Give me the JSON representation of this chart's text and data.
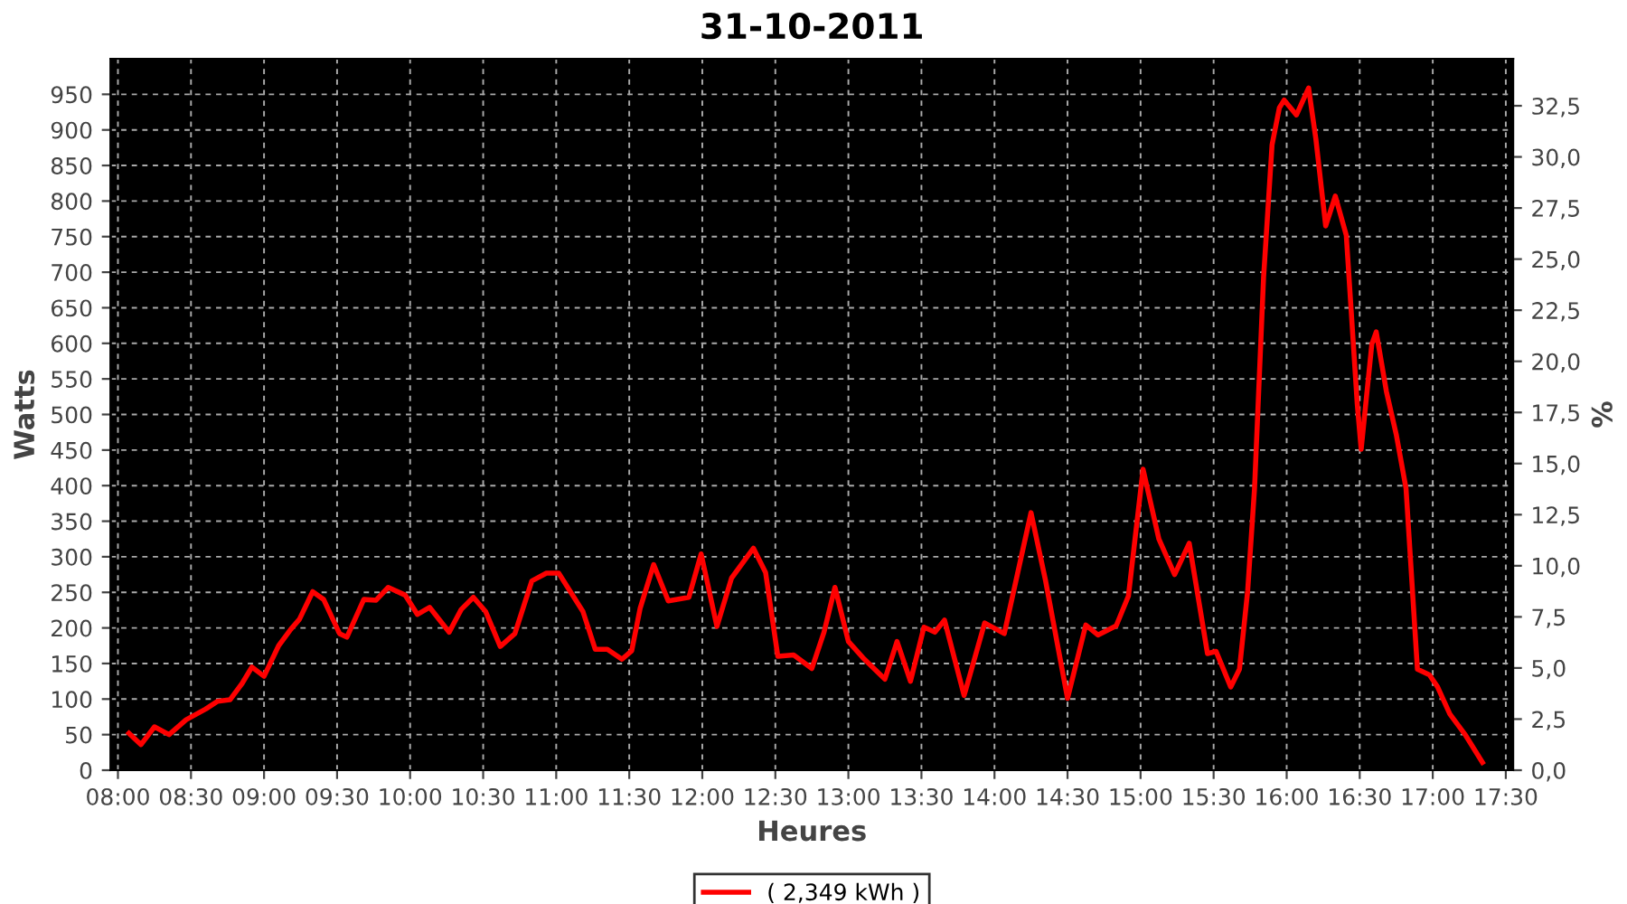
{
  "chart_data": {
    "type": "line",
    "title": "31-10-2011",
    "xlabel": "Heures",
    "ylabel": "Watts",
    "y2label": "%",
    "xlim": [
      7.95,
      17.55
    ],
    "xticks": [
      {
        "value": 8,
        "label": "08:00"
      },
      {
        "value": 8.5,
        "label": "08:30"
      },
      {
        "value": 9,
        "label": "09:00"
      },
      {
        "value": 9.5,
        "label": "09:30"
      },
      {
        "value": 10,
        "label": "10:00"
      },
      {
        "value": 10.5,
        "label": "10:30"
      },
      {
        "value": 11,
        "label": "11:00"
      },
      {
        "value": 11.5,
        "label": "11:30"
      },
      {
        "value": 12,
        "label": "12:00"
      },
      {
        "value": 12.5,
        "label": "12:30"
      },
      {
        "value": 13,
        "label": "13:00"
      },
      {
        "value": 13.5,
        "label": "13:30"
      },
      {
        "value": 14,
        "label": "14:00"
      },
      {
        "value": 14.5,
        "label": "14:30"
      },
      {
        "value": 15,
        "label": "15:00"
      },
      {
        "value": 15.5,
        "label": "15:30"
      },
      {
        "value": 16,
        "label": "16:00"
      },
      {
        "value": 16.5,
        "label": "16:30"
      },
      {
        "value": 17,
        "label": "17:00"
      },
      {
        "value": 17.5,
        "label": "17:30"
      }
    ],
    "ylim": [
      0,
      1000
    ],
    "yticks": [
      0,
      50,
      100,
      150,
      200,
      250,
      300,
      350,
      400,
      450,
      500,
      550,
      600,
      650,
      700,
      750,
      800,
      850,
      900,
      950
    ],
    "y2lim": [
      0,
      34.8
    ],
    "y2ticks": [
      {
        "value": 0,
        "label": "0,0"
      },
      {
        "value": 2.5,
        "label": "2,5"
      },
      {
        "value": 5,
        "label": "5,0"
      },
      {
        "value": 7.5,
        "label": "7,5"
      },
      {
        "value": 10,
        "label": "10,0"
      },
      {
        "value": 12.5,
        "label": "12,5"
      },
      {
        "value": 15,
        "label": "15,0"
      },
      {
        "value": 17.5,
        "label": "17,5"
      },
      {
        "value": 20,
        "label": "20,0"
      },
      {
        "value": 22.5,
        "label": "22,5"
      },
      {
        "value": 25,
        "label": "25,0"
      },
      {
        "value": 27.5,
        "label": "27,5"
      },
      {
        "value": 30,
        "label": "30,0"
      },
      {
        "value": 32.5,
        "label": "32,5"
      }
    ],
    "grid": true,
    "legend": "bottom",
    "marker": "none",
    "line_style": "solid",
    "series": [
      {
        "name": "( 2,349 kWh )",
        "color": "#ff0000",
        "x": [
          8.075,
          8.158,
          8.25,
          8.35,
          8.467,
          8.6,
          8.683,
          8.767,
          8.85,
          8.917,
          9.0,
          9.1,
          9.183,
          9.242,
          9.333,
          9.408,
          9.517,
          9.567,
          9.683,
          9.767,
          9.85,
          9.967,
          10.05,
          10.133,
          10.267,
          10.35,
          10.433,
          10.517,
          10.617,
          10.717,
          10.833,
          10.933,
          11.017,
          11.183,
          11.267,
          11.35,
          11.45,
          11.517,
          11.575,
          11.667,
          11.767,
          11.908,
          11.992,
          12.1,
          12.2,
          12.35,
          12.433,
          12.517,
          12.625,
          12.75,
          12.833,
          12.908,
          13.0,
          13.1,
          13.25,
          13.333,
          13.425,
          13.517,
          13.592,
          13.658,
          13.792,
          13.933,
          14.067,
          14.25,
          14.35,
          14.5,
          14.625,
          14.708,
          14.833,
          14.917,
          15.017,
          15.125,
          15.233,
          15.333,
          15.458,
          15.517,
          15.617,
          15.677,
          15.733,
          15.78,
          15.842,
          15.9,
          15.95,
          15.983,
          16.067,
          16.15,
          16.2,
          16.267,
          16.333,
          16.408,
          16.483,
          16.51,
          16.583,
          16.613,
          16.683,
          16.75,
          16.817,
          16.895,
          16.977,
          17.033,
          17.117,
          17.225,
          17.34
        ],
        "values": [
          52,
          36,
          61,
          50,
          71,
          86,
          97,
          99,
          122,
          145,
          132,
          175,
          198,
          212,
          251,
          240,
          192,
          187,
          240,
          239,
          257,
          246,
          219,
          229,
          194,
          226,
          243,
          223,
          174,
          192,
          266,
          277,
          277,
          223,
          170,
          170,
          156,
          168,
          228,
          289,
          238,
          243,
          304,
          202,
          270,
          312,
          278,
          160,
          162,
          143,
          194,
          257,
          181,
          158,
          128,
          181,
          125,
          201,
          194,
          211,
          105,
          207,
          192,
          362,
          266,
          101,
          204,
          190,
          203,
          245,
          423,
          325,
          275,
          319,
          164,
          167,
          117,
          142,
          252,
          396,
          693,
          879,
          931,
          942,
          921,
          959,
          887,
          765,
          807,
          752,
          515,
          451,
          599,
          616,
          532,
          472,
          396,
          142,
          134,
          117,
          79,
          49,
          11
        ]
      }
    ]
  }
}
